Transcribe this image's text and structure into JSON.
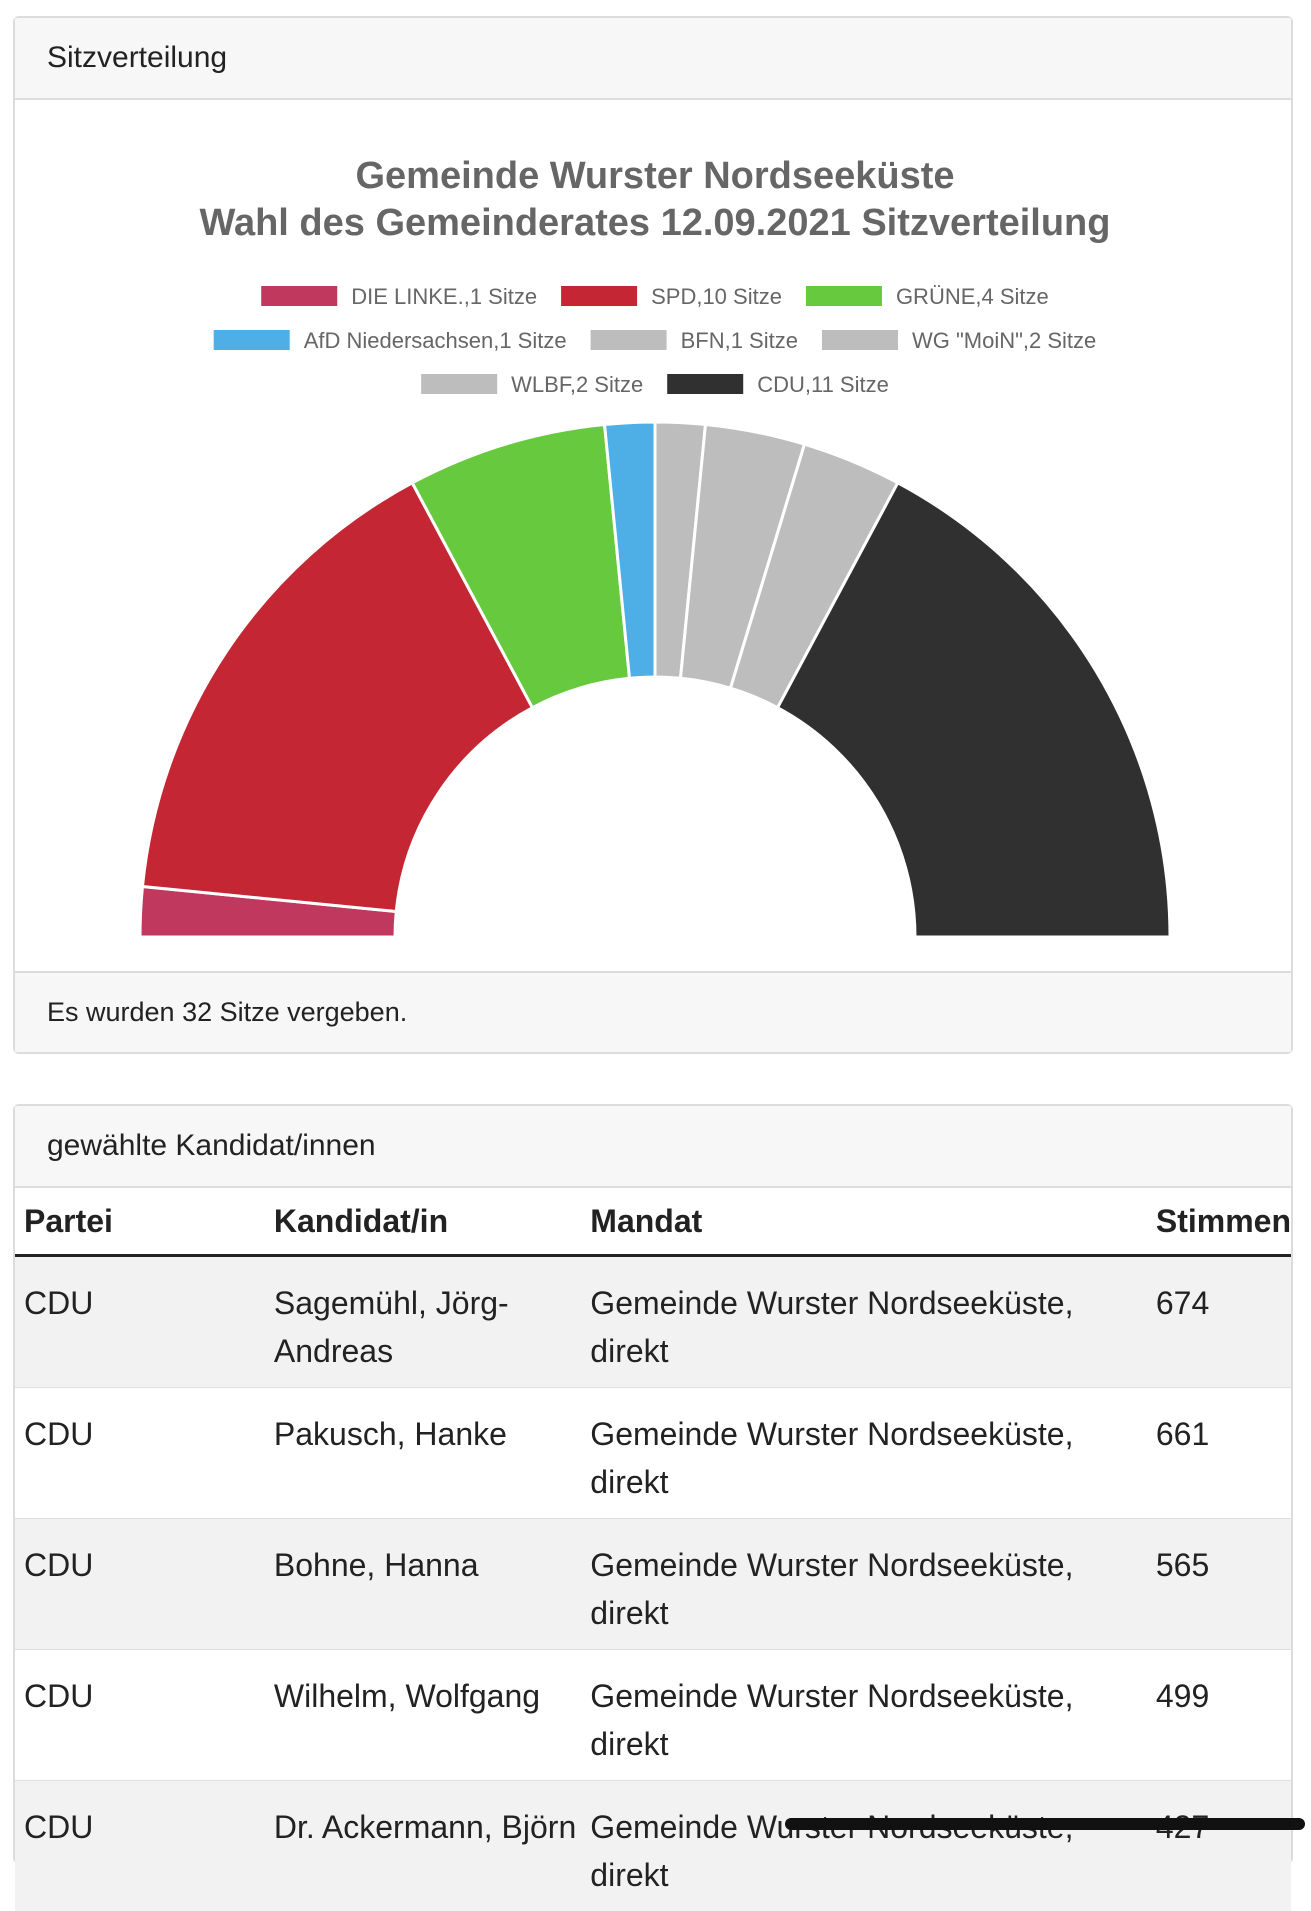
{
  "seats_card": {
    "header": "Sitzverteilung",
    "footer": "Es wurden 32 Sitze vergeben."
  },
  "chart_data": {
    "type": "parliament-semicircle",
    "title": "Gemeinde Wurster Nordseeküste",
    "subtitle": "Wahl des Gemeinderates 12.09.2021 Sitzverteilung",
    "total_seats": 32,
    "legend_position": "top",
    "parties": [
      {
        "name": "DIE LINKE.",
        "seats": 1,
        "legend": "DIE LINKE.,1 Sitze",
        "color": "#c0385e"
      },
      {
        "name": "SPD",
        "seats": 10,
        "legend": "SPD,10 Sitze",
        "color": "#c42733"
      },
      {
        "name": "GRÜNE",
        "seats": 4,
        "legend": "GRÜNE,4 Sitze",
        "color": "#66c93e"
      },
      {
        "name": "AfD Niedersachsen",
        "seats": 1,
        "legend": "AfD Niedersachsen,1 Sitze",
        "color": "#4eaee6"
      },
      {
        "name": "BFN",
        "seats": 1,
        "legend": "BFN,1 Sitze",
        "color": "#bdbdbd"
      },
      {
        "name": "WG \"MoiN\"",
        "seats": 2,
        "legend": "WG \"MoiN\",2 Sitze",
        "color": "#bdbdbd"
      },
      {
        "name": "WLBF",
        "seats": 2,
        "legend": "WLBF,2 Sitze",
        "color": "#bdbdbd"
      },
      {
        "name": "CDU",
        "seats": 11,
        "legend": "CDU,11 Sitze",
        "color": "#303030"
      }
    ]
  },
  "candidates_card": {
    "header": "gewählte Kandidat/innen",
    "columns": [
      "Partei",
      "Kandidat/in",
      "Mandat",
      "Stimmen"
    ],
    "rows": [
      {
        "party": "CDU",
        "candidate": "Sagemühl, Jörg-Andreas",
        "mandat": "Gemeinde Wurster Nordseeküste, direkt",
        "votes": "674"
      },
      {
        "party": "CDU",
        "candidate": "Pakusch, Hanke",
        "mandat": "Gemeinde Wurster Nordseeküste, direkt",
        "votes": "661"
      },
      {
        "party": "CDU",
        "candidate": "Bohne, Hanna",
        "mandat": "Gemeinde Wurster Nordseeküste, direkt",
        "votes": "565"
      },
      {
        "party": "CDU",
        "candidate": "Wilhelm, Wolfgang",
        "mandat": "Gemeinde Wurster Nordseeküste, direkt",
        "votes": "499"
      },
      {
        "party": "CDU",
        "candidate": "Dr. Ackermann, Björn",
        "mandat": "Gemeinde Wurster Nordseeküste, direkt",
        "votes": "427"
      }
    ]
  }
}
